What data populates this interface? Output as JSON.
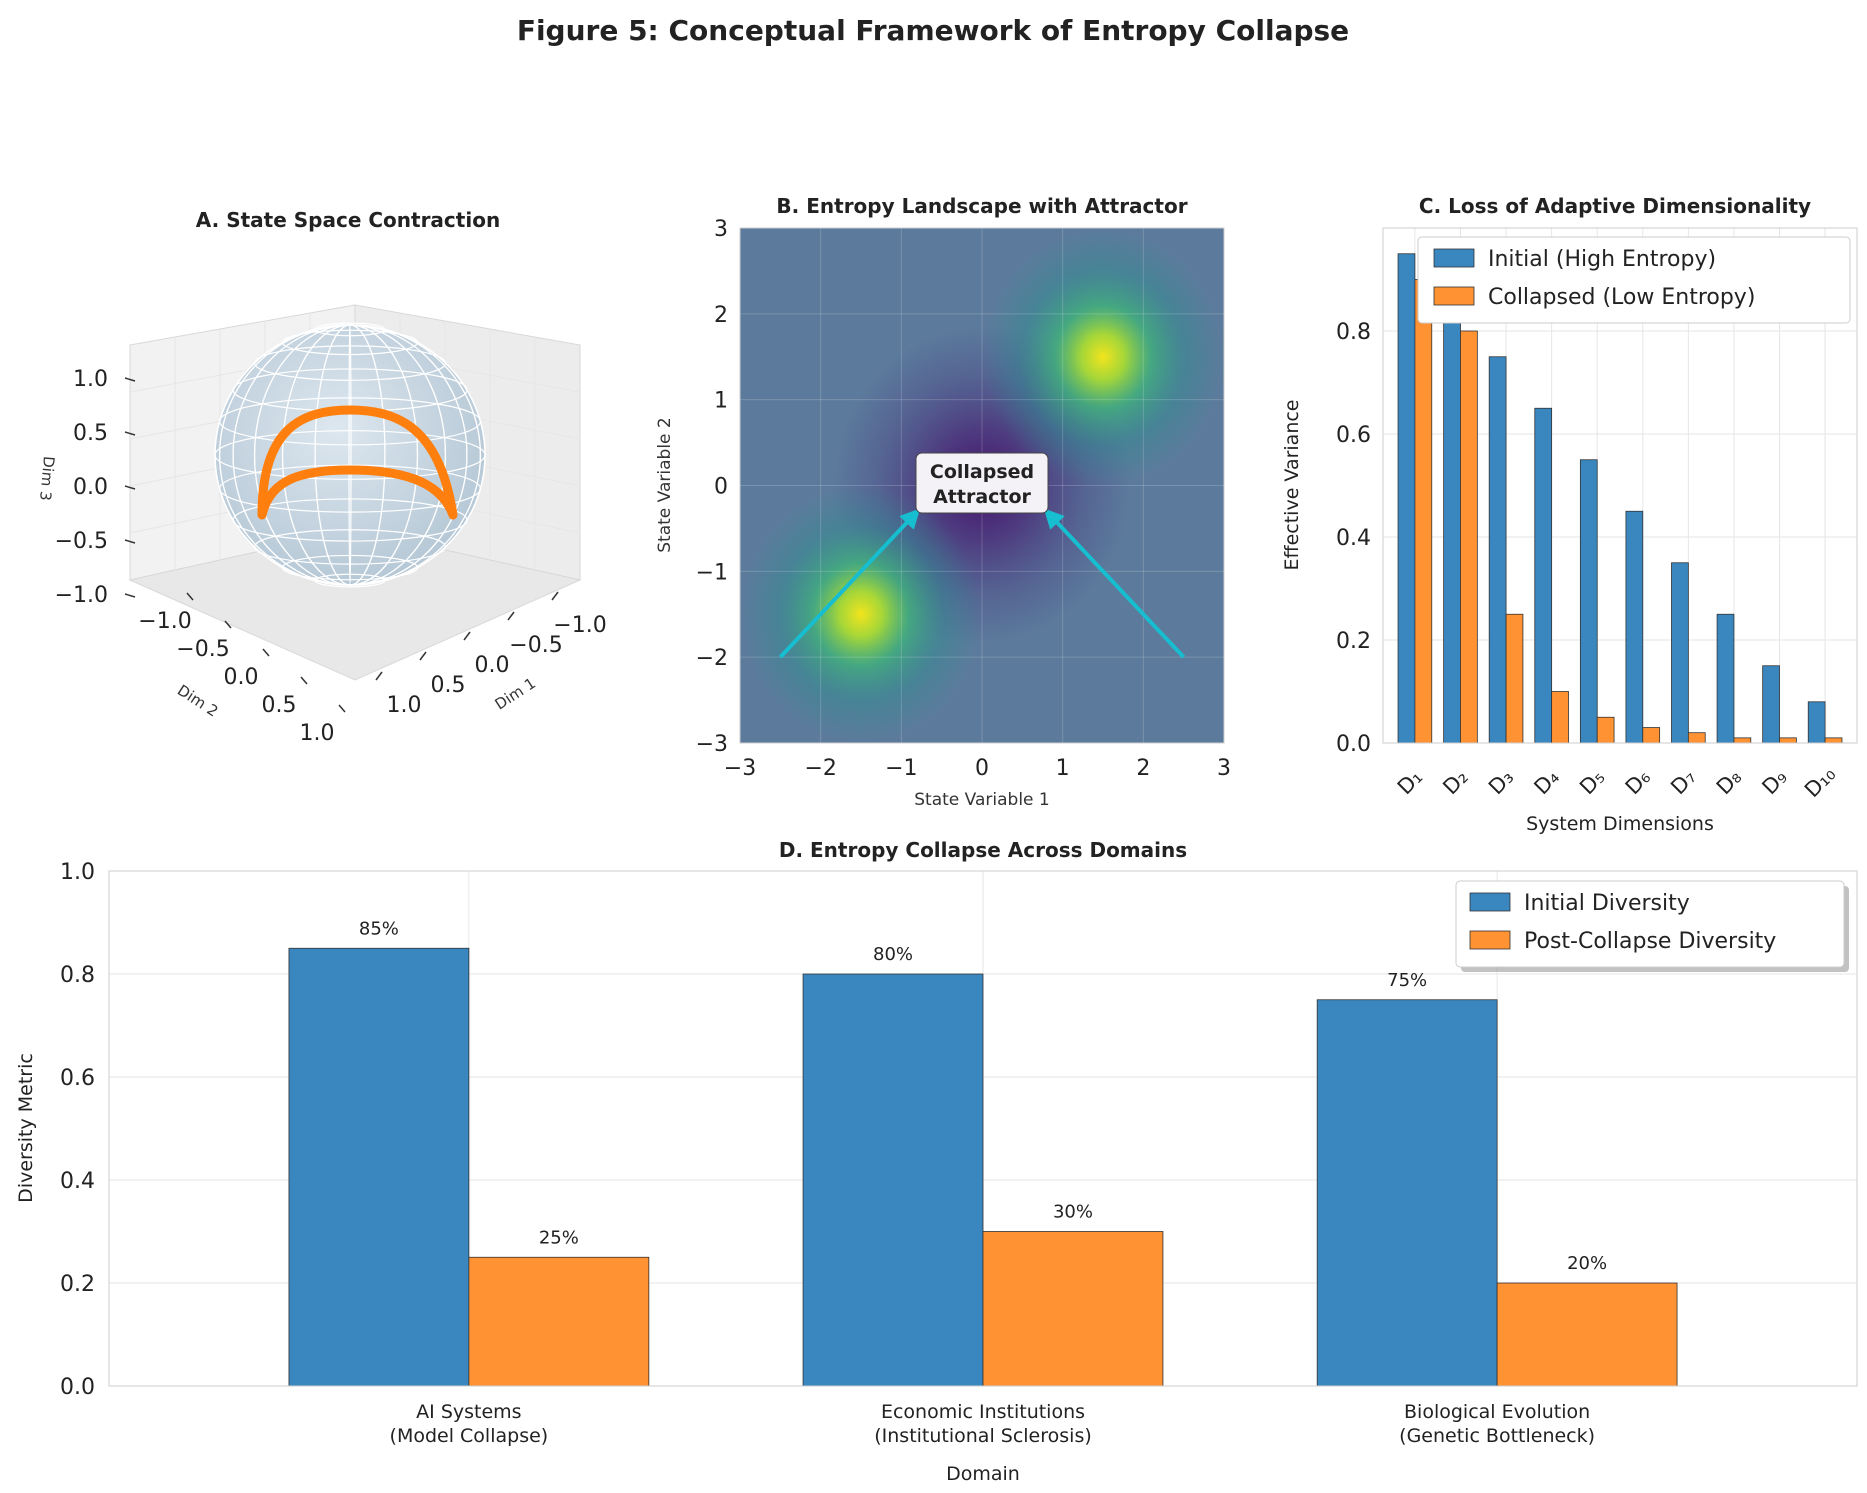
{
  "figure_title": "Figure 5: Conceptual Framework of Entropy Collapse",
  "colors": {
    "initial": "#3a87c0",
    "collapsed": "#ff9233",
    "arrow": "#17becf",
    "grid": "#e6e6e6"
  },
  "chart_data": [
    {
      "id": "A",
      "type": "scatter",
      "title": "A. State Space Contraction",
      "xlabel": "Dim 1",
      "ylabel": "Dim 2",
      "zlabel": "Dim 3",
      "xlim": [
        -1.0,
        1.0
      ],
      "ylim": [
        -1.0,
        1.0
      ],
      "zlim": [
        -1.0,
        1.0
      ],
      "x_ticks": [
        "−1.0",
        "−0.5",
        "0.0",
        "0.5",
        "1.0"
      ],
      "y_ticks": [
        "−1.0",
        "−0.5",
        "0.0",
        "0.5",
        "1.0"
      ],
      "z_ticks": [
        "−1.0",
        "−0.5",
        "0.0",
        "0.5",
        "1.0"
      ],
      "sphere_radius": 1.0,
      "trajectory": "orange curve on the sphere surface",
      "grid": true
    },
    {
      "id": "B",
      "type": "heatmap",
      "title": "B. Entropy Landscape with Attractor",
      "xlabel": "State Variable 1",
      "ylabel": "State Variable 2",
      "xlim": [
        -3,
        3
      ],
      "ylim": [
        -3,
        3
      ],
      "x_ticks": [
        "−3",
        "−2",
        "−1",
        "0",
        "1",
        "2",
        "3"
      ],
      "y_ticks": [
        "−3",
        "−2",
        "−1",
        "0",
        "1",
        "2",
        "3"
      ],
      "minimum": {
        "x": 0,
        "y": 0
      },
      "peaks": [
        {
          "x": 1.5,
          "y": 1.5
        },
        {
          "x": -1.5,
          "y": -1.5
        }
      ],
      "annotation": {
        "line1": "Collapsed",
        "line2": "Attractor",
        "x": 0,
        "y": 0
      },
      "arrows": [
        {
          "from": [
            -2.5,
            -2.0
          ],
          "to": [
            -0.8,
            -0.3
          ]
        },
        {
          "from": [
            2.5,
            -2.0
          ],
          "to": [
            0.8,
            -0.3
          ]
        }
      ],
      "grid": true
    },
    {
      "id": "C",
      "type": "bar",
      "title": "C. Loss of Adaptive Dimensionality",
      "xlabel": "System Dimensions",
      "ylabel": "Effective Variance",
      "categories": [
        "D₁",
        "D₂",
        "D₃",
        "D₄",
        "D₅",
        "D₆",
        "D₇",
        "D₈",
        "D₉",
        "D₁₀"
      ],
      "series": [
        {
          "name": "Initial (High Entropy)",
          "values": [
            0.95,
            0.88,
            0.75,
            0.65,
            0.55,
            0.45,
            0.35,
            0.25,
            0.15,
            0.08
          ]
        },
        {
          "name": "Collapsed (Low Entropy)",
          "values": [
            0.9,
            0.8,
            0.25,
            0.1,
            0.05,
            0.03,
            0.02,
            0.01,
            0.01,
            0.01
          ]
        }
      ],
      "ylim": [
        0,
        1.0
      ],
      "y_ticks": [
        "0.0",
        "0.2",
        "0.4",
        "0.6",
        "0.8"
      ],
      "legend": "top-right",
      "grid": true
    },
    {
      "id": "D",
      "type": "bar",
      "title": "D. Entropy Collapse Across Domains",
      "xlabel": "Domain",
      "ylabel": "Diversity Metric",
      "categories": [
        [
          "AI Systems",
          "(Model Collapse)"
        ],
        [
          "Economic Institutions",
          "(Institutional Sclerosis)"
        ],
        [
          "Biological Evolution",
          "(Genetic Bottleneck)"
        ]
      ],
      "series": [
        {
          "name": "Initial Diversity",
          "values": [
            0.85,
            0.8,
            0.75
          ],
          "labels": [
            "85%",
            "80%",
            "75%"
          ]
        },
        {
          "name": "Post-Collapse Diversity",
          "values": [
            0.25,
            0.3,
            0.2
          ],
          "labels": [
            "25%",
            "30%",
            "20%"
          ]
        }
      ],
      "ylim": [
        0,
        1.0
      ],
      "y_ticks": [
        "0.0",
        "0.2",
        "0.4",
        "0.6",
        "0.8",
        "1.0"
      ],
      "legend": "top-right",
      "grid": true
    }
  ]
}
